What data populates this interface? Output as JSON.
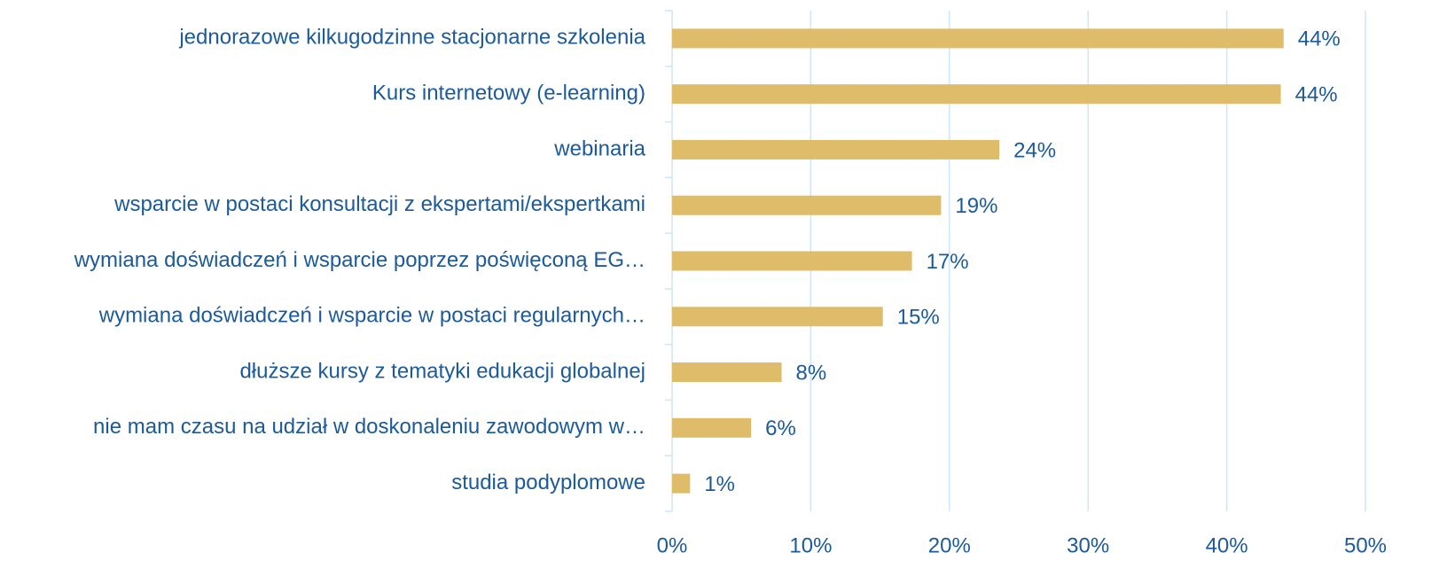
{
  "chart_data": {
    "type": "bar",
    "orientation": "horizontal",
    "categories": [
      "jednorazowe kilkugodzinne stacjonarne szkolenia",
      "Kurs internetowy (e-learning)",
      "webinaria",
      "wsparcie w postaci konsultacji z ekspertami/ekspertkami",
      "wymiana doświadczeń i wsparcie poprzez poświęconą EG…",
      "wymiana doświadczeń i wsparcie w postaci regularnych…",
      "dłuższe kursy z tematyki edukacji globalnej",
      "nie mam czasu na udział w doskonaleniu zawodowym w…",
      "studia podyplomowe"
    ],
    "values": [
      44.1,
      43.9,
      23.6,
      19.4,
      17.3,
      15.2,
      7.9,
      5.7,
      1.3
    ],
    "value_labels": [
      "44%",
      "44%",
      "24%",
      "19%",
      "17%",
      "15%",
      "8%",
      "6%",
      "1%"
    ],
    "color": "#dfbc69",
    "xlim": [
      0,
      50
    ],
    "xticks": [
      {
        "value": 0,
        "label": "0%"
      },
      {
        "value": 10,
        "label": "10%"
      },
      {
        "value": 20,
        "label": "20%"
      },
      {
        "value": 30,
        "label": "30%"
      },
      {
        "value": 40,
        "label": "40%"
      },
      {
        "value": 50,
        "label": "50%"
      }
    ],
    "grid": true
  }
}
